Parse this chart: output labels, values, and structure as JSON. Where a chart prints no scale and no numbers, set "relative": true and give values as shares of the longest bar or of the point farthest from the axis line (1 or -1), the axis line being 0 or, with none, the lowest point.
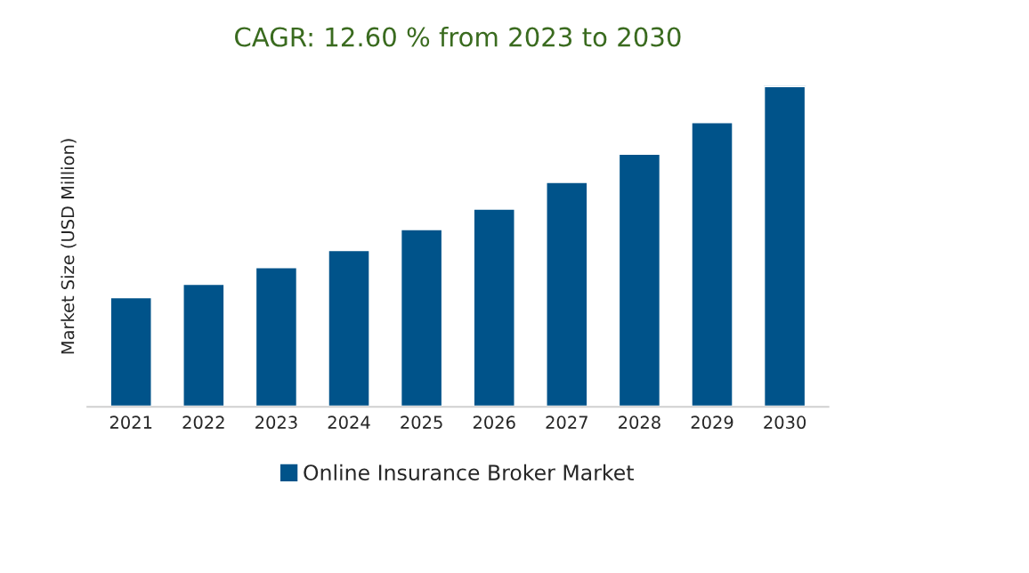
{
  "chart_data": {
    "type": "bar",
    "title": "CAGR: 12.60 % from 2023 to 2030",
    "ylabel": "Market Size (USD Million)",
    "categories": [
      "2021",
      "2022",
      "2023",
      "2024",
      "2025",
      "2026",
      "2027",
      "2028",
      "2029",
      "2030"
    ],
    "series": [
      {
        "name": "Online Insurance Broker Market",
        "color": "#00538a",
        "values": [
          0.342,
          0.384,
          0.436,
          0.489,
          0.554,
          0.618,
          0.701,
          0.789,
          0.888,
          1.0
        ]
      }
    ],
    "relative": true,
    "legend": "bottom",
    "grid": false
  }
}
